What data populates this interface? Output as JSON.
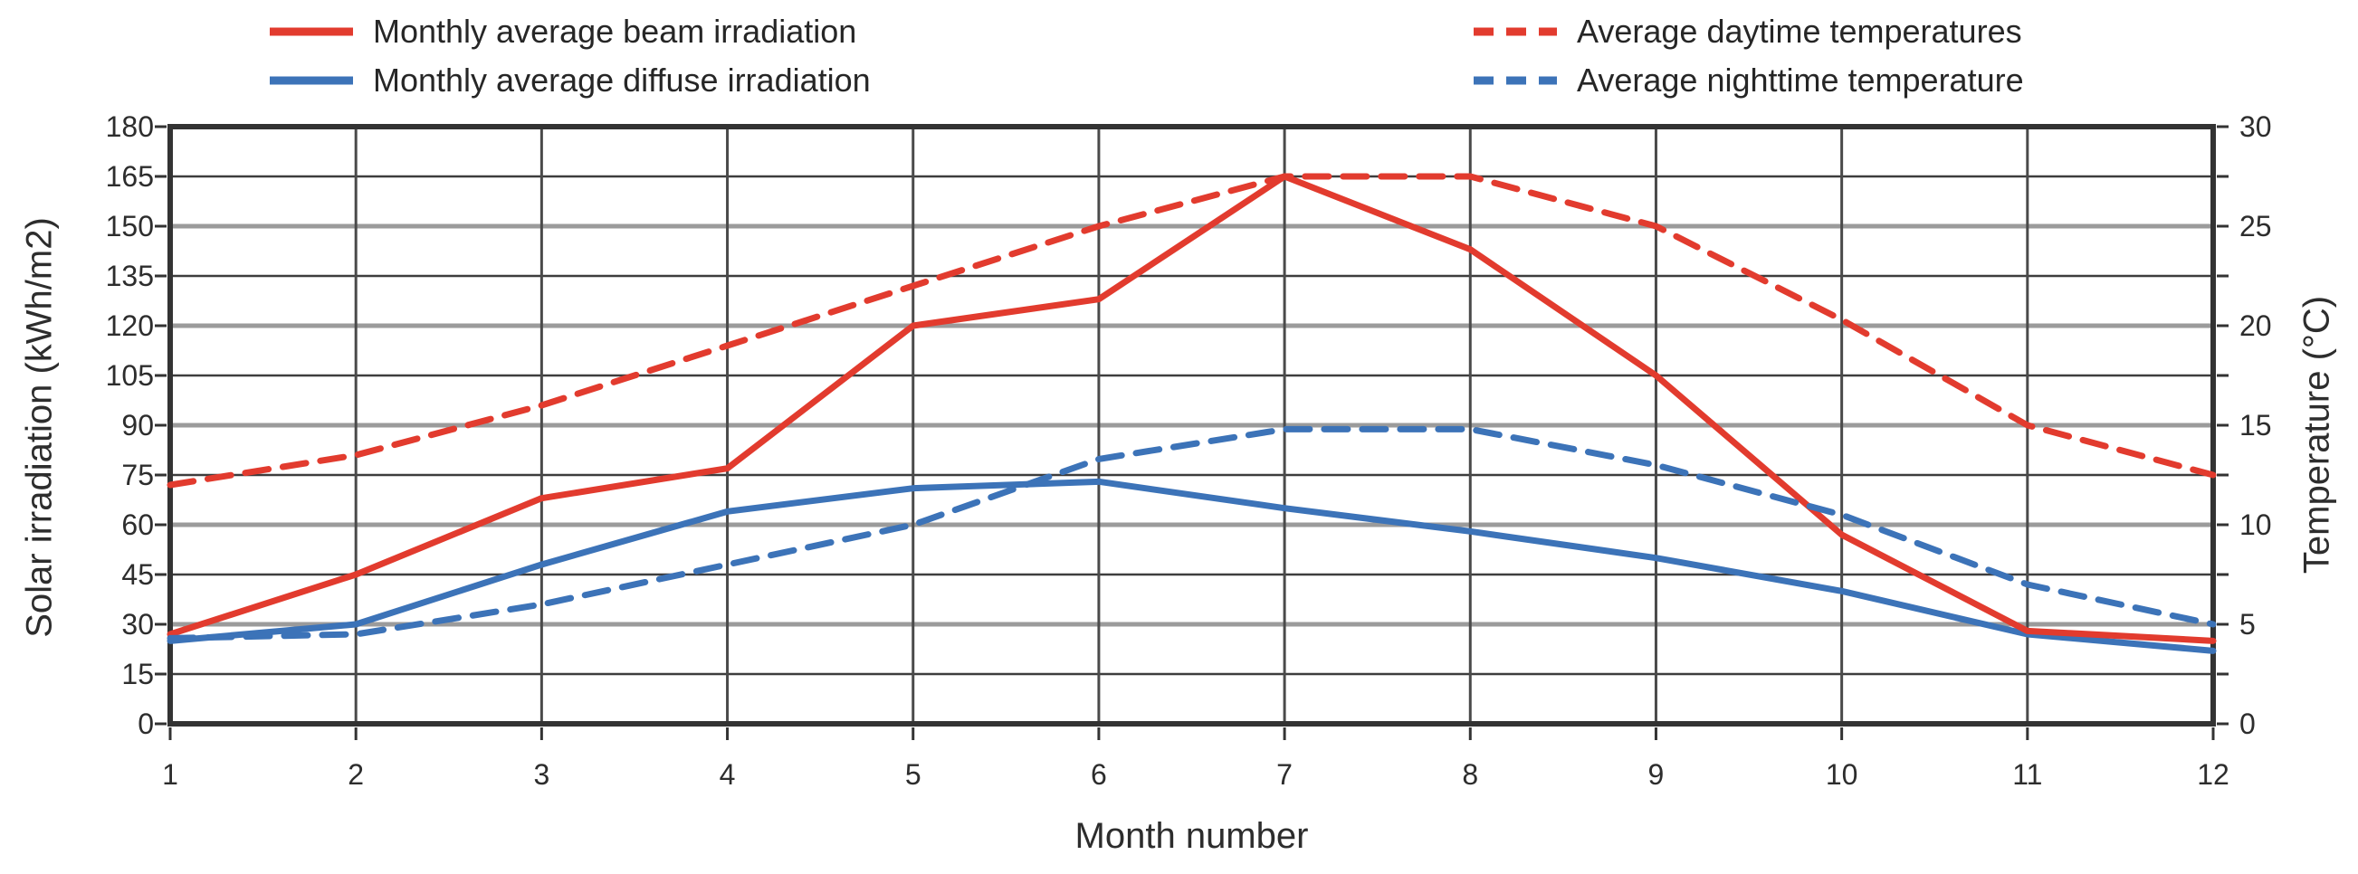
{
  "colors": {
    "beam_red": "#e23b2e",
    "diffuse_blue": "#3c73b8",
    "grid_major": "#9b9b9b",
    "grid_minor": "#3d3d3d",
    "grid_vertical": "#4a4a4a",
    "frame": "#333333",
    "text": "#2d2d2d"
  },
  "axes": {
    "left": {
      "title": "Solar irradiation (kWh/m2)",
      "ticks": [
        180,
        165,
        150,
        135,
        120,
        105,
        90,
        75,
        60,
        45,
        30,
        15,
        0
      ]
    },
    "right": {
      "title": "Temperature (°C)",
      "ticks": [
        30,
        25,
        20,
        15,
        10,
        5,
        0
      ]
    },
    "x": {
      "title": "Month number"
    }
  },
  "chart_data": {
    "type": "line",
    "title": "",
    "xlabel": "Month number",
    "ylabel": "Solar irradiation (kWh/m2)",
    "y2label": "Temperature (°C)",
    "ylim": [
      0,
      180
    ],
    "y2lim": [
      0,
      30
    ],
    "grid": true,
    "legend_position": "top",
    "x": [
      1,
      2,
      3,
      4,
      5,
      6,
      7,
      8,
      9,
      10,
      11,
      12
    ],
    "series": [
      {
        "id": "beam-irradiation",
        "name": "Monthly average beam irradiation",
        "axis": "left",
        "unit": "kWh/m2",
        "color": "#e23b2e",
        "dashed": false,
        "values": [
          27,
          45,
          68,
          77,
          120,
          128,
          165,
          143,
          105,
          57,
          28,
          25
        ]
      },
      {
        "id": "diffuse-irradiation",
        "name": "Monthly average diffuse irradiation",
        "axis": "left",
        "unit": "kWh/m2",
        "color": "#3c73b8",
        "dashed": false,
        "values": [
          25,
          30,
          48,
          64,
          71,
          73,
          65,
          58,
          50,
          40,
          27,
          22
        ]
      },
      {
        "id": "daytime-temperature",
        "name": "Average daytime temperatures",
        "axis": "right",
        "unit": "°C",
        "color": "#e23b2e",
        "dashed": true,
        "values": [
          12,
          13.5,
          16,
          19,
          22,
          25,
          27.5,
          27.5,
          25,
          20.3,
          15,
          12.5
        ]
      },
      {
        "id": "nighttime-temperature",
        "name": "Average nighttime temperature",
        "axis": "right",
        "unit": "°C",
        "color": "#3c73b8",
        "dashed": true,
        "values": [
          4.3,
          4.5,
          6,
          8,
          10,
          13.3,
          14.8,
          14.8,
          13,
          10.5,
          7,
          5
        ]
      }
    ]
  }
}
